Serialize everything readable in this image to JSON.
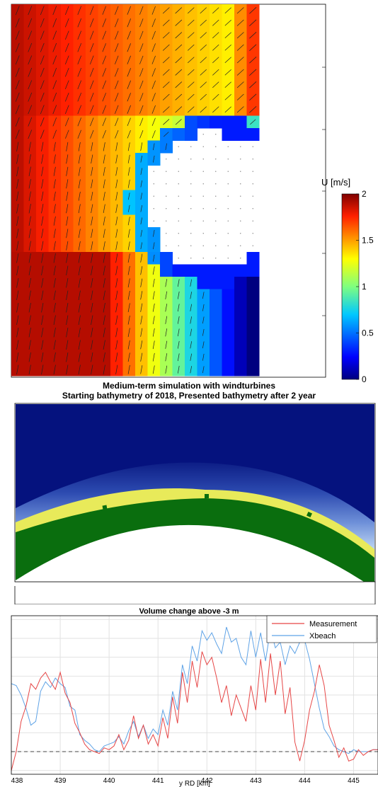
{
  "colors": {
    "ocean": "#05127e",
    "land_green": "#0a6e0e",
    "sand_yellow": "#e8ea5a",
    "measurement": "#e64646",
    "xbeach": "#5fa3e6",
    "zero_line": "#444444"
  },
  "panels": {
    "flow": {
      "colorbar": {
        "label": "U [m/s]",
        "ticks": [
          "0",
          "0.5",
          "1",
          "1.5",
          "2"
        ],
        "range": [
          0,
          2
        ],
        "colormap": "jet"
      }
    },
    "bathymetry": {
      "title_line1": "Medium-term simulation with windturbines",
      "title_line2": "Starting bathymetry of 2018, Presented bathymetry after 2 year"
    }
  },
  "chart_data": {
    "type": "line",
    "title": "Volume change above -3 m",
    "xlabel": "y RD [km]",
    "ylabel": "",
    "x_ticks": [
      "438",
      "439",
      "440",
      "441",
      "442",
      "443",
      "444",
      "445"
    ],
    "xlim": [
      438,
      445.5
    ],
    "ylim": [
      -1.2,
      7.2
    ],
    "grid": true,
    "legend_position": "top-right",
    "reference_line_y": 0,
    "series": [
      {
        "name": "Measurement",
        "color": "#e64646",
        "x": [
          438.0,
          438.1,
          438.2,
          438.3,
          438.4,
          438.5,
          438.6,
          438.7,
          438.8,
          438.9,
          439.0,
          439.1,
          439.2,
          439.3,
          439.4,
          439.5,
          439.6,
          439.7,
          439.8,
          439.9,
          440.0,
          440.1,
          440.2,
          440.3,
          440.4,
          440.5,
          440.6,
          440.7,
          440.8,
          440.9,
          441.0,
          441.1,
          441.2,
          441.3,
          441.4,
          441.5,
          441.6,
          441.7,
          441.8,
          441.9,
          442.0,
          442.1,
          442.2,
          442.3,
          442.4,
          442.5,
          442.6,
          442.7,
          442.8,
          442.9,
          443.0,
          443.1,
          443.2,
          443.3,
          443.4,
          443.5,
          443.6,
          443.7,
          443.8,
          443.9,
          444.0,
          444.1,
          444.2,
          444.3,
          444.4,
          444.5,
          444.6,
          444.7,
          444.8,
          444.9,
          445.0,
          445.1,
          445.2,
          445.3,
          445.4,
          445.5
        ],
        "y": [
          -1.0,
          0.0,
          1.6,
          2.4,
          3.6,
          3.3,
          3.9,
          4.2,
          3.7,
          3.3,
          4.2,
          3.1,
          2.6,
          1.5,
          1.0,
          0.4,
          0.1,
          0.0,
          -0.1,
          0.2,
          0.1,
          0.3,
          0.9,
          0.1,
          0.6,
          1.9,
          0.7,
          1.4,
          0.4,
          0.9,
          0.3,
          1.8,
          0.7,
          2.9,
          1.5,
          4.2,
          2.6,
          4.8,
          3.4,
          5.3,
          4.6,
          5.0,
          3.9,
          2.6,
          3.5,
          1.9,
          3.0,
          2.3,
          1.6,
          3.5,
          2.2,
          4.9,
          2.6,
          5.2,
          3.0,
          4.8,
          2.0,
          3.4,
          0.5,
          -0.5,
          0.6,
          2.2,
          3.2,
          4.6,
          3.5,
          1.4,
          0.6,
          -0.3,
          0.2,
          -0.5,
          -0.4,
          0.1,
          -0.2,
          0.0,
          0.1,
          0.1
        ]
      },
      {
        "name": "Xbeach",
        "color": "#5fa3e6",
        "x": [
          438.0,
          438.1,
          438.2,
          438.3,
          438.4,
          438.5,
          438.6,
          438.7,
          438.8,
          438.9,
          439.0,
          439.1,
          439.2,
          439.3,
          439.4,
          439.5,
          439.6,
          439.7,
          439.8,
          439.9,
          440.0,
          440.1,
          440.2,
          440.3,
          440.4,
          440.5,
          440.6,
          440.7,
          440.8,
          440.9,
          441.0,
          441.1,
          441.2,
          441.3,
          441.4,
          441.5,
          441.6,
          441.7,
          441.8,
          441.9,
          442.0,
          442.1,
          442.2,
          442.3,
          442.4,
          442.5,
          442.6,
          442.7,
          442.8,
          442.9,
          443.0,
          443.1,
          443.2,
          443.3,
          443.4,
          443.5,
          443.6,
          443.7,
          443.8,
          443.9,
          444.0,
          444.1,
          444.2,
          444.3,
          444.4,
          444.5,
          444.6,
          444.7,
          444.8,
          444.9,
          445.0,
          445.1,
          445.2,
          445.3,
          445.4,
          445.5
        ],
        "y": [
          3.6,
          3.5,
          3.0,
          2.3,
          1.4,
          1.6,
          3.2,
          3.7,
          3.4,
          3.9,
          3.6,
          3.4,
          2.4,
          2.2,
          0.9,
          0.6,
          0.4,
          0.1,
          0.0,
          0.3,
          0.4,
          0.5,
          0.8,
          0.4,
          1.1,
          1.6,
          0.8,
          1.4,
          0.7,
          1.2,
          0.9,
          2.2,
          1.4,
          3.2,
          2.2,
          4.6,
          3.6,
          5.6,
          4.8,
          6.4,
          5.9,
          6.3,
          5.7,
          5.2,
          6.6,
          5.8,
          6.0,
          5.0,
          4.6,
          6.4,
          5.0,
          6.3,
          4.8,
          6.5,
          5.5,
          5.8,
          4.6,
          5.6,
          5.2,
          5.8,
          5.9,
          4.9,
          3.6,
          2.3,
          1.2,
          0.8,
          0.3,
          0.1,
          0.0,
          -0.1,
          0.1,
          0.0,
          0.0,
          0.0,
          0.1,
          0.1
        ]
      }
    ]
  }
}
